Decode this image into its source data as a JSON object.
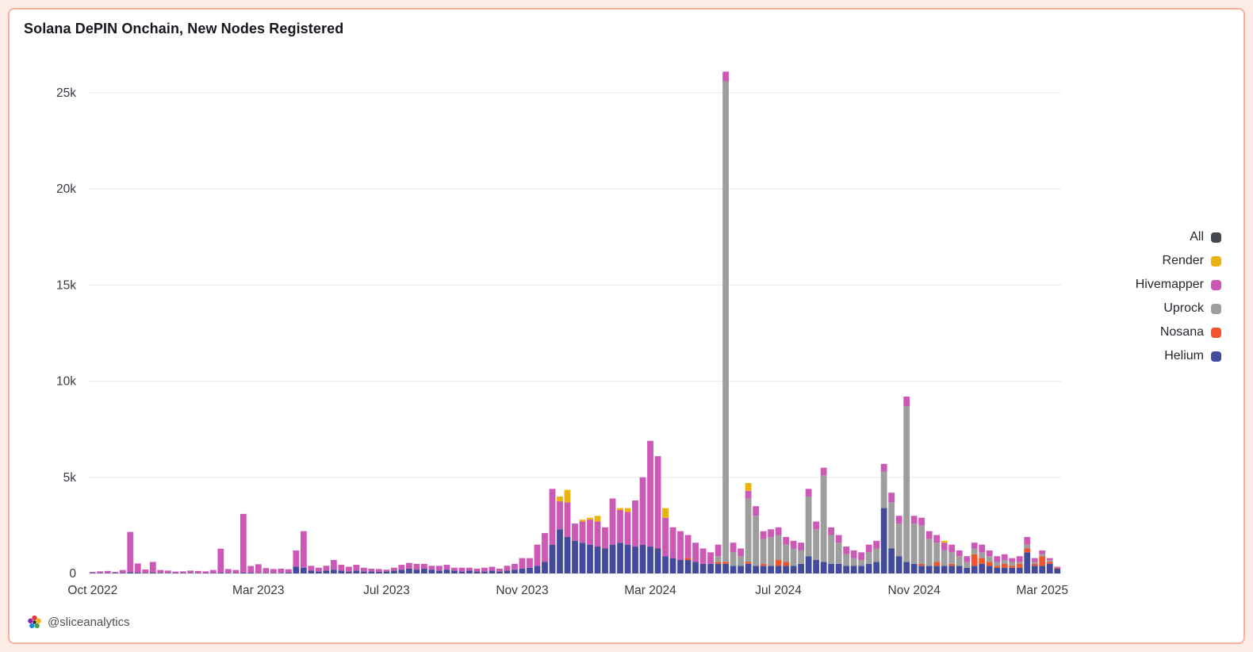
{
  "page": {
    "title": "Solana DePIN Onchain, New Nodes Registered",
    "attribution": "@sliceanalytics"
  },
  "theme": {
    "page_background": "#fcece5",
    "card_background": "#ffffff",
    "card_border": "#f6b29f",
    "grid_color": "#e7e7e9",
    "tick_text_color": "#363b42"
  },
  "legend": {
    "position": "right",
    "items": [
      {
        "label": "All",
        "color": "#42484e"
      },
      {
        "label": "Render",
        "color": "#eab310"
      },
      {
        "label": "Hivemapper",
        "color": "#ce58b5"
      },
      {
        "label": "Uprock",
        "color": "#9e9e9e"
      },
      {
        "label": "Nosana",
        "color": "#f2552c"
      },
      {
        "label": "Helium",
        "color": "#424a9c"
      }
    ]
  },
  "chart_data": {
    "type": "bar",
    "stacked": true,
    "title": "Solana DePIN Onchain, New Nodes Registered",
    "xlabel": "",
    "ylabel": "",
    "grid": true,
    "legend_position": "right",
    "ylim": [
      0,
      26500
    ],
    "y_ticks": [
      {
        "value": 0,
        "label": "0"
      },
      {
        "value": 5000,
        "label": "5k"
      },
      {
        "value": 10000,
        "label": "10k"
      },
      {
        "value": 15000,
        "label": "15k"
      },
      {
        "value": 20000,
        "label": "20k"
      },
      {
        "value": 25000,
        "label": "25k"
      }
    ],
    "x_ticks": [
      {
        "index": 0,
        "label": "Oct 2022"
      },
      {
        "index": 22,
        "label": "Mar 2023"
      },
      {
        "index": 39,
        "label": "Jul 2023"
      },
      {
        "index": 57,
        "label": "Nov 2023"
      },
      {
        "index": 74,
        "label": "Mar 2024"
      },
      {
        "index": 91,
        "label": "Jul 2024"
      },
      {
        "index": 109,
        "label": "Nov 2024"
      },
      {
        "index": 126,
        "label": "Mar 2025"
      }
    ],
    "weeks": [
      "2022-10-03",
      "2022-10-10",
      "2022-10-17",
      "2022-10-24",
      "2022-10-31",
      "2022-11-07",
      "2022-11-14",
      "2022-11-21",
      "2022-11-28",
      "2022-12-05",
      "2022-12-12",
      "2022-12-19",
      "2022-12-26",
      "2023-01-02",
      "2023-01-09",
      "2023-01-16",
      "2023-01-23",
      "2023-01-30",
      "2023-02-06",
      "2023-02-13",
      "2023-02-20",
      "2023-02-27",
      "2023-03-06",
      "2023-03-13",
      "2023-03-20",
      "2023-03-27",
      "2023-04-03",
      "2023-04-10",
      "2023-04-17",
      "2023-04-24",
      "2023-05-01",
      "2023-05-08",
      "2023-05-15",
      "2023-05-22",
      "2023-05-29",
      "2023-06-05",
      "2023-06-12",
      "2023-06-19",
      "2023-06-26",
      "2023-07-03",
      "2023-07-10",
      "2023-07-17",
      "2023-07-24",
      "2023-07-31",
      "2023-08-07",
      "2023-08-14",
      "2023-08-21",
      "2023-08-28",
      "2023-09-04",
      "2023-09-11",
      "2023-09-18",
      "2023-09-25",
      "2023-10-02",
      "2023-10-09",
      "2023-10-16",
      "2023-10-23",
      "2023-10-30",
      "2023-11-06",
      "2023-11-13",
      "2023-11-20",
      "2023-11-27",
      "2023-12-04",
      "2023-12-11",
      "2023-12-18",
      "2023-12-25",
      "2024-01-01",
      "2024-01-08",
      "2024-01-15",
      "2024-01-22",
      "2024-01-29",
      "2024-02-05",
      "2024-02-12",
      "2024-02-19",
      "2024-02-26",
      "2024-03-04",
      "2024-03-11",
      "2024-03-18",
      "2024-03-25",
      "2024-04-01",
      "2024-04-08",
      "2024-04-15",
      "2024-04-22",
      "2024-04-29",
      "2024-05-06",
      "2024-05-13",
      "2024-05-20",
      "2024-05-27",
      "2024-06-03",
      "2024-06-10",
      "2024-06-17",
      "2024-06-24",
      "2024-07-01",
      "2024-07-08",
      "2024-07-15",
      "2024-07-22",
      "2024-07-29",
      "2024-08-05",
      "2024-08-12",
      "2024-08-19",
      "2024-08-26",
      "2024-09-02",
      "2024-09-09",
      "2024-09-16",
      "2024-09-23",
      "2024-09-30",
      "2024-10-07",
      "2024-10-14",
      "2024-10-21",
      "2024-10-28",
      "2024-11-04",
      "2024-11-11",
      "2024-11-18",
      "2024-11-25",
      "2024-12-02",
      "2024-12-09",
      "2024-12-16",
      "2024-12-23",
      "2024-12-30",
      "2025-01-06",
      "2025-01-13",
      "2025-01-20",
      "2025-01-27",
      "2025-02-03",
      "2025-02-10",
      "2025-02-17",
      "2025-02-24",
      "2025-03-03",
      "2025-03-10",
      "2025-03-17"
    ],
    "series": [
      {
        "name": "Helium",
        "color": "#424a9c",
        "values": [
          20,
          30,
          30,
          20,
          30,
          60,
          40,
          30,
          40,
          30,
          30,
          20,
          20,
          30,
          30,
          20,
          30,
          40,
          30,
          30,
          50,
          40,
          30,
          30,
          30,
          30,
          40,
          350,
          300,
          150,
          100,
          150,
          200,
          150,
          100,
          150,
          100,
          100,
          80,
          100,
          150,
          200,
          250,
          200,
          250,
          200,
          150,
          200,
          150,
          100,
          150,
          100,
          100,
          150,
          100,
          150,
          200,
          250,
          300,
          400,
          600,
          1500,
          2300,
          1900,
          1700,
          1600,
          1500,
          1400,
          1300,
          1500,
          1600,
          1500,
          1400,
          1500,
          1400,
          1300,
          900,
          800,
          700,
          700,
          600,
          500,
          500,
          500,
          500,
          400,
          400,
          500,
          400,
          400,
          400,
          400,
          400,
          400,
          500,
          900,
          700,
          600,
          500,
          500,
          400,
          400,
          400,
          500,
          600,
          3400,
          1300,
          900,
          600,
          500,
          400,
          400,
          400,
          400,
          400,
          400,
          300,
          400,
          500,
          400,
          300,
          300,
          300,
          300,
          1100,
          400,
          400,
          500,
          250
        ]
      },
      {
        "name": "Nosana",
        "color": "#f2552c",
        "values": [
          0,
          0,
          0,
          0,
          0,
          0,
          0,
          0,
          0,
          0,
          0,
          0,
          0,
          0,
          0,
          0,
          0,
          0,
          0,
          0,
          0,
          0,
          0,
          0,
          0,
          0,
          0,
          0,
          0,
          0,
          0,
          0,
          0,
          0,
          0,
          0,
          0,
          0,
          0,
          0,
          0,
          0,
          0,
          0,
          0,
          0,
          0,
          0,
          0,
          0,
          0,
          0,
          0,
          0,
          0,
          0,
          0,
          0,
          0,
          0,
          0,
          0,
          0,
          0,
          0,
          0,
          0,
          0,
          0,
          0,
          0,
          0,
          0,
          0,
          0,
          0,
          0,
          0,
          0,
          100,
          0,
          0,
          0,
          100,
          100,
          0,
          0,
          100,
          0,
          100,
          0,
          300,
          200,
          0,
          0,
          0,
          0,
          0,
          0,
          0,
          0,
          0,
          0,
          0,
          0,
          0,
          0,
          0,
          0,
          0,
          100,
          0,
          200,
          0,
          100,
          0,
          0,
          600,
          300,
          200,
          100,
          200,
          100,
          200,
          200,
          100,
          500,
          100,
          50
        ]
      },
      {
        "name": "Uprock",
        "color": "#9e9e9e",
        "values": [
          0,
          0,
          0,
          0,
          0,
          0,
          0,
          0,
          0,
          0,
          0,
          0,
          0,
          0,
          0,
          0,
          0,
          0,
          0,
          0,
          0,
          0,
          0,
          0,
          0,
          0,
          0,
          0,
          0,
          0,
          0,
          0,
          0,
          0,
          0,
          0,
          0,
          0,
          0,
          0,
          0,
          0,
          0,
          0,
          0,
          0,
          0,
          0,
          0,
          0,
          0,
          0,
          0,
          0,
          0,
          0,
          0,
          0,
          0,
          0,
          0,
          0,
          0,
          0,
          0,
          0,
          0,
          0,
          0,
          0,
          0,
          0,
          0,
          0,
          0,
          0,
          0,
          0,
          0,
          0,
          0,
          0,
          0,
          300,
          25000,
          700,
          500,
          3300,
          2600,
          1300,
          1500,
          1300,
          900,
          900,
          700,
          3100,
          1600,
          4500,
          1500,
          1100,
          600,
          400,
          300,
          600,
          700,
          1900,
          2400,
          1700,
          8100,
          2100,
          2000,
          1400,
          1000,
          800,
          600,
          500,
          300,
          300,
          300,
          300,
          200,
          200,
          200,
          100,
          200,
          100,
          100,
          100,
          0
        ]
      },
      {
        "name": "Hivemapper",
        "color": "#ce58b5",
        "values": [
          60,
          80,
          100,
          60,
          150,
          2100,
          480,
          180,
          560,
          150,
          120,
          80,
          90,
          120,
          100,
          90,
          150,
          1250,
          200,
          150,
          3050,
          350,
          450,
          250,
          200,
          220,
          180,
          850,
          1900,
          250,
          200,
          250,
          500,
          300,
          250,
          300,
          200,
          150,
          150,
          100,
          150,
          250,
          300,
          300,
          250,
          200,
          250,
          250,
          150,
          200,
          150,
          150,
          200,
          200,
          150,
          250,
          300,
          550,
          500,
          1100,
          1500,
          2900,
          1450,
          1800,
          900,
          1100,
          1300,
          1300,
          1100,
          2400,
          1700,
          1700,
          2400,
          3500,
          5500,
          4800,
          2000,
          1600,
          1500,
          1200,
          1000,
          800,
          600,
          600,
          500,
          500,
          400,
          400,
          500,
          400,
          400,
          400,
          400,
          400,
          400,
          400,
          400,
          400,
          400,
          400,
          400,
          400,
          400,
          400,
          400,
          400,
          500,
          400,
          500,
          400,
          400,
          400,
          400,
          400,
          400,
          300,
          300,
          300,
          400,
          300,
          300,
          300,
          200,
          300,
          400,
          200,
          200,
          100,
          50
        ]
      },
      {
        "name": "Render",
        "color": "#eab310",
        "values": [
          0,
          0,
          0,
          0,
          0,
          0,
          0,
          0,
          0,
          0,
          0,
          0,
          0,
          0,
          0,
          0,
          0,
          0,
          0,
          0,
          0,
          0,
          0,
          0,
          0,
          0,
          0,
          0,
          0,
          0,
          0,
          0,
          0,
          0,
          0,
          0,
          0,
          0,
          0,
          0,
          0,
          0,
          0,
          0,
          0,
          0,
          0,
          0,
          0,
          0,
          0,
          0,
          0,
          0,
          0,
          0,
          0,
          0,
          0,
          0,
          0,
          0,
          250,
          650,
          0,
          100,
          100,
          300,
          0,
          0,
          100,
          200,
          0,
          0,
          0,
          0,
          500,
          0,
          0,
          0,
          0,
          0,
          0,
          0,
          0,
          0,
          0,
          400,
          0,
          0,
          0,
          0,
          0,
          0,
          0,
          0,
          0,
          0,
          0,
          0,
          0,
          0,
          0,
          0,
          0,
          0,
          0,
          0,
          0,
          0,
          0,
          0,
          0,
          100,
          0,
          0,
          0,
          0,
          0,
          0,
          0,
          0,
          0,
          0,
          0,
          0,
          0,
          0,
          0
        ]
      }
    ]
  }
}
